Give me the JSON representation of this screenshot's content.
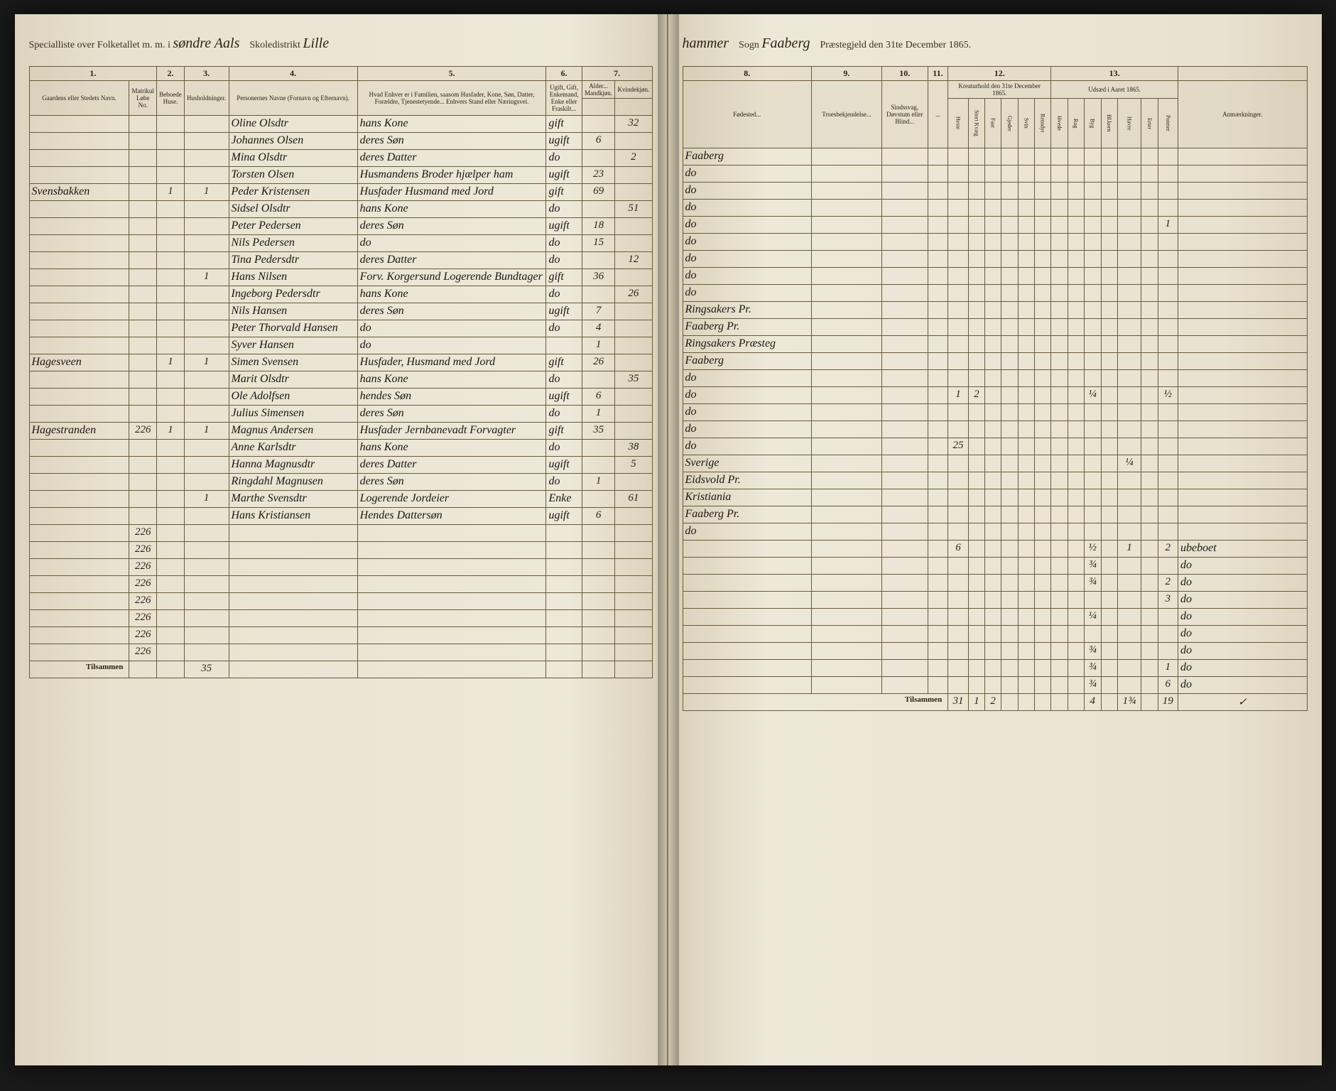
{
  "header": {
    "title_prefix": "Specialliste over Folketallet m. m. i",
    "district": "søndre Aals",
    "school_label": "Skoledistrikt",
    "school": "Lille",
    "parish_word": "hammer",
    "sogn_label": "Sogn",
    "sogn": "Faaberg",
    "date_label": "Præstegjeld den 31te December 1865."
  },
  "columns_left": {
    "c1": "1.",
    "c2": "2.",
    "c3": "3.",
    "c4": "4.",
    "c5": "5.",
    "c6": "6.",
    "c7": "7.",
    "h1": "Gaardens eller Stedets Navn.",
    "h1b": "Matrikul Løbe No.",
    "h2": "Beboede Huse.",
    "h3": "Husholdninger.",
    "h4": "Personernes Navne (Fornavn og Efternavn).",
    "h5": "Hvad Enhver er i Familien, saasom Husfader, Kone, Søn, Datter, Forældre, Tjenestetyende... Enhvers Stand eller Næringsvei.",
    "h6": "Ugift, Gift, Enkemand, Enke eller Fraskilt...",
    "h7a": "Alder... Mandkjøn.",
    "h7b": "Kvindekjøn."
  },
  "columns_right": {
    "c8": "8.",
    "c9": "9.",
    "c10": "10.",
    "c11": "11.",
    "c12": "12.",
    "c13": "13.",
    "h8": "Fødested...",
    "h9": "Troesbekjendelse...",
    "h10": "Sindssvag, Døvstum eller Blind...",
    "h11": "...",
    "h12": "Kreaturhold den 31te December 1865.",
    "h13": "Udsæd i Aaret 1865.",
    "h14": "Anmærkninger.",
    "sub12": [
      "Heste",
      "Stort Kvæg",
      "Faar",
      "Gjeder",
      "Svin",
      "Rensdyr"
    ],
    "sub13": [
      "Hvede",
      "Rug",
      "Byg",
      "Bl.korn",
      "Havre",
      "Erter",
      "Poteter"
    ]
  },
  "rows": [
    {
      "gaard": "",
      "mno": "",
      "hus": "",
      "hh": "",
      "navn": "Oline Olsdtr",
      "fam": "hans Kone",
      "stand": "gift",
      "mk": "",
      "kk": "32",
      "fod": "Faaberg"
    },
    {
      "gaard": "",
      "mno": "",
      "hus": "",
      "hh": "",
      "navn": "Johannes Olsen",
      "fam": "deres Søn",
      "stand": "ugift",
      "mk": "6",
      "kk": "",
      "fod": "do"
    },
    {
      "gaard": "",
      "mno": "",
      "hus": "",
      "hh": "",
      "navn": "Mina Olsdtr",
      "fam": "deres Datter",
      "stand": "do",
      "mk": "",
      "kk": "2",
      "fod": "do"
    },
    {
      "gaard": "",
      "mno": "",
      "hus": "",
      "hh": "",
      "navn": "Torsten Olsen",
      "fam": "Husmandens Broder hjælper ham",
      "stand": "ugift",
      "mk": "23",
      "kk": "",
      "fod": "do"
    },
    {
      "gaard": "Svensbakken",
      "mno": "",
      "hus": "1",
      "hh": "1",
      "navn": "Peder Kristensen",
      "fam": "Husfader Husmand med Jord",
      "stand": "gift",
      "mk": "69",
      "kk": "",
      "fod": "do",
      "c13_7": "1"
    },
    {
      "gaard": "",
      "mno": "",
      "hus": "",
      "hh": "",
      "navn": "Sidsel Olsdtr",
      "fam": "hans Kone",
      "stand": "do",
      "mk": "",
      "kk": "51",
      "fod": "do"
    },
    {
      "gaard": "",
      "mno": "",
      "hus": "",
      "hh": "",
      "navn": "Peter Pedersen",
      "fam": "deres Søn",
      "stand": "ugift",
      "mk": "18",
      "kk": "",
      "fod": "do"
    },
    {
      "gaard": "",
      "mno": "",
      "hus": "",
      "hh": "",
      "navn": "Nils Pedersen",
      "fam": "do",
      "stand": "do",
      "mk": "15",
      "kk": "",
      "fod": "do"
    },
    {
      "gaard": "",
      "mno": "",
      "hus": "",
      "hh": "",
      "navn": "Tina Pedersdtr",
      "fam": "deres Datter",
      "stand": "do",
      "mk": "",
      "kk": "12",
      "fod": "do"
    },
    {
      "gaard": "",
      "mno": "",
      "hus": "",
      "hh": "1",
      "navn": "Hans Nilsen",
      "fam": "Forv. Korgersund Logerende Bundtager",
      "stand": "gift",
      "mk": "36",
      "kk": "",
      "fod": "Ringsakers Pr."
    },
    {
      "gaard": "",
      "mno": "",
      "hus": "",
      "hh": "",
      "navn": "Ingeborg Pedersdtr",
      "fam": "hans Kone",
      "stand": "do",
      "mk": "",
      "kk": "26",
      "fod": "Faaberg Pr."
    },
    {
      "gaard": "",
      "mno": "",
      "hus": "",
      "hh": "",
      "navn": "Nils Hansen",
      "fam": "deres Søn",
      "stand": "ugift",
      "mk": "7",
      "kk": "",
      "fod": "Ringsakers Præsteg"
    },
    {
      "gaard": "",
      "mno": "",
      "hus": "",
      "hh": "",
      "navn": "Peter Thorvald Hansen",
      "fam": "do",
      "stand": "do",
      "mk": "4",
      "kk": "",
      "fod": "Faaberg"
    },
    {
      "gaard": "",
      "mno": "",
      "hus": "",
      "hh": "",
      "navn": "Syver Hansen",
      "fam": "do",
      "stand": "",
      "mk": "1",
      "kk": "",
      "fod": "do"
    },
    {
      "gaard": "Hagesveen",
      "mno": "",
      "hus": "1",
      "hh": "1",
      "navn": "Simen Svensen",
      "fam": "Husfader, Husmand med Jord",
      "stand": "gift",
      "mk": "26",
      "kk": "",
      "fod": "do",
      "c12_1": "1",
      "c12_2": "2",
      "c13_3": "¼",
      "c13_7": "½"
    },
    {
      "gaard": "",
      "mno": "",
      "hus": "",
      "hh": "",
      "navn": "Marit Olsdtr",
      "fam": "hans Kone",
      "stand": "do",
      "mk": "",
      "kk": "35",
      "fod": "do"
    },
    {
      "gaard": "",
      "mno": "",
      "hus": "",
      "hh": "",
      "navn": "Ole Adolfsen",
      "fam": "hendes Søn",
      "stand": "ugift",
      "mk": "6",
      "kk": "",
      "fod": "do"
    },
    {
      "gaard": "",
      "mno": "",
      "hus": "",
      "hh": "",
      "navn": "Julius Simensen",
      "fam": "deres Søn",
      "stand": "do",
      "mk": "1",
      "kk": "",
      "fod": "do",
      "c12_1": "25"
    },
    {
      "gaard": "Hagestranden",
      "mno": "226",
      "hus": "1",
      "hh": "1",
      "navn": "Magnus Andersen",
      "fam": "Husfader Jernbanevadt Forvagter",
      "stand": "gift",
      "mk": "35",
      "kk": "",
      "fod": "Sverige",
      "c13_5": "¼"
    },
    {
      "gaard": "",
      "mno": "",
      "hus": "",
      "hh": "",
      "navn": "Anne Karlsdtr",
      "fam": "hans Kone",
      "stand": "do",
      "mk": "",
      "kk": "38",
      "fod": "Eidsvold Pr."
    },
    {
      "gaard": "",
      "mno": "",
      "hus": "",
      "hh": "",
      "navn": "Hanna Magnusdtr",
      "fam": "deres Datter",
      "stand": "ugift",
      "mk": "",
      "kk": "5",
      "fod": "Kristiania"
    },
    {
      "gaard": "",
      "mno": "",
      "hus": "",
      "hh": "",
      "navn": "Ringdahl Magnusen",
      "fam": "deres Søn",
      "stand": "do",
      "mk": "1",
      "kk": "",
      "fod": "Faaberg Pr."
    },
    {
      "gaard": "",
      "mno": "",
      "hus": "",
      "hh": "1",
      "navn": "Marthe Svensdtr",
      "fam": "Logerende Jordeier",
      "stand": "Enke",
      "mk": "",
      "kk": "61",
      "fod": "do"
    },
    {
      "gaard": "",
      "mno": "",
      "hus": "",
      "hh": "",
      "navn": "Hans Kristiansen",
      "fam": "Hendes Dattersøn",
      "stand": "ugift",
      "mk": "6",
      "kk": "",
      "fod": "",
      "c12_1": "6",
      "c13_3": "½",
      "c13_5": "1",
      "c13_7": "2",
      "anm": "ubeboet"
    },
    {
      "gaard": "",
      "mno": "226",
      "c13_3": "¾",
      "anm": "do"
    },
    {
      "gaard": "",
      "mno": "226",
      "c13_3": "¾",
      "c13_7": "2",
      "anm": "do"
    },
    {
      "gaard": "",
      "mno": "226",
      "c13_7": "3",
      "anm": "do"
    },
    {
      "gaard": "",
      "mno": "226",
      "c13_3": "¼",
      "anm": "do"
    },
    {
      "gaard": "",
      "mno": "226",
      "anm": "do"
    },
    {
      "gaard": "",
      "mno": "226",
      "c13_3": "¾",
      "anm": "do"
    },
    {
      "gaard": "",
      "mno": "226",
      "c13_3": "¾",
      "c13_7": "1",
      "anm": "do"
    },
    {
      "gaard": "",
      "mno": "226",
      "c13_3": "¾",
      "c13_7": "6",
      "anm": "do"
    }
  ],
  "totals": {
    "label": "Tilsammen",
    "hh": "35",
    "right_label": "Tilsammen",
    "c12_1": "31",
    "c12_2": "1",
    "c12_3": "2",
    "c13_3": "4",
    "c13_5": "1¾",
    "c13_7": "19",
    "anm_check": "✓"
  },
  "style": {
    "paper": "#e8e2d0",
    "ink": "#2a2218",
    "border": "#6a5a3a",
    "script_color": "#1a1510"
  }
}
